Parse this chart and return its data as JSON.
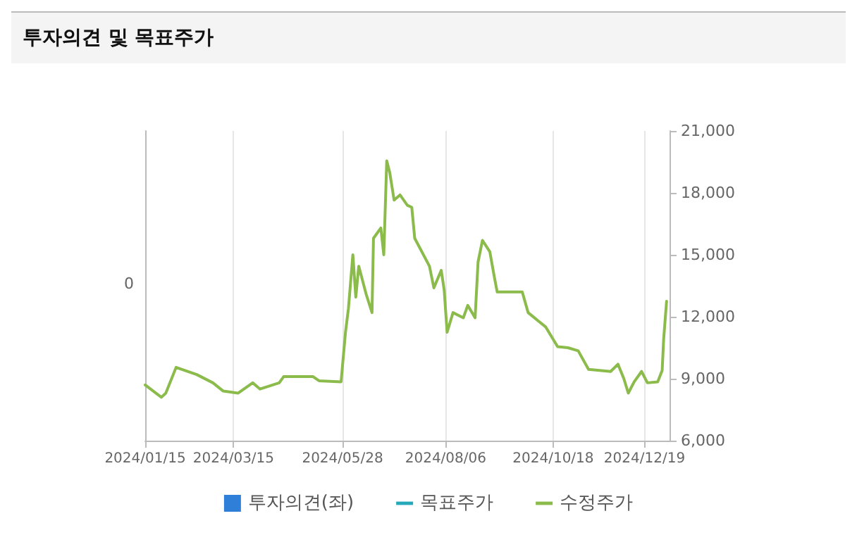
{
  "chart_data": {
    "type": "line",
    "title": "투자의견 및 목표주가",
    "x": [
      "2024-01-15",
      "2024-01-26",
      "2024-01-29",
      "2024-02-05",
      "2024-02-19",
      "2024-03-01",
      "2024-03-08",
      "2024-03-18",
      "2024-03-28",
      "2024-04-02",
      "2024-04-15",
      "2024-04-18",
      "2024-05-08",
      "2024-05-12",
      "2024-05-27",
      "2024-05-30",
      "2024-06-01",
      "2024-06-04",
      "2024-06-06",
      "2024-06-08",
      "2024-06-13",
      "2024-06-17",
      "2024-06-18",
      "2024-06-23",
      "2024-06-25",
      "2024-06-27",
      "2024-06-29",
      "2024-07-02",
      "2024-07-06",
      "2024-07-11",
      "2024-07-14",
      "2024-07-16",
      "2024-07-26",
      "2024-07-29",
      "2024-08-03",
      "2024-08-05",
      "2024-08-07",
      "2024-08-11",
      "2024-08-18",
      "2024-08-21",
      "2024-08-26",
      "2024-08-28",
      "2024-08-31",
      "2024-09-05",
      "2024-09-08",
      "2024-09-10",
      "2024-09-27",
      "2024-10-01",
      "2024-10-13",
      "2024-10-21",
      "2024-10-28",
      "2024-11-04",
      "2024-11-11",
      "2024-11-26",
      "2024-12-01",
      "2024-12-05",
      "2024-12-08",
      "2024-12-12",
      "2024-12-17",
      "2024-12-21",
      "2024-12-28",
      "2024-12-31",
      "2025-01-01",
      "2025-01-03"
    ],
    "series": [
      {
        "name": "투자의견(좌)",
        "color": "#2f7ed8",
        "axis": "y",
        "values": [
          null,
          null,
          null,
          null,
          null,
          null,
          null,
          null,
          null,
          null,
          null,
          null,
          null,
          null,
          null,
          null,
          null,
          null,
          null,
          null,
          null,
          null,
          null,
          null,
          null,
          null,
          null,
          null,
          null,
          null,
          null,
          null,
          null,
          null,
          null,
          null,
          null,
          null,
          null,
          null,
          null,
          null,
          null,
          null,
          null,
          null,
          null,
          null,
          null,
          null,
          null,
          null,
          null,
          null,
          null,
          null,
          null,
          null,
          null,
          null,
          null,
          null,
          null,
          null
        ]
      },
      {
        "name": "목표주가",
        "color": "#26a9b8",
        "axis": "y2",
        "values": [
          null,
          null,
          null,
          null,
          null,
          null,
          null,
          null,
          null,
          null,
          null,
          null,
          null,
          null,
          null,
          null,
          null,
          null,
          null,
          null,
          null,
          null,
          null,
          null,
          null,
          null,
          null,
          null,
          null,
          null,
          null,
          null,
          null,
          null,
          null,
          null,
          null,
          null,
          null,
          null,
          null,
          null,
          null,
          null,
          null,
          null,
          null,
          null,
          null,
          null,
          null,
          null,
          null,
          null,
          null,
          null,
          null,
          null,
          null,
          null,
          null,
          null,
          null,
          null
        ]
      },
      {
        "name": "수정주가",
        "color": "#8bbb4b",
        "axis": "y2",
        "values": [
          8700,
          8100,
          8300,
          9550,
          9200,
          8800,
          8400,
          8300,
          8800,
          8500,
          8800,
          9100,
          9100,
          8900,
          8850,
          11250,
          12400,
          15000,
          12950,
          14450,
          13100,
          12200,
          15800,
          16300,
          15000,
          19550,
          19000,
          17650,
          17900,
          17400,
          17300,
          15800,
          14450,
          13400,
          14250,
          13300,
          11250,
          12200,
          11950,
          12550,
          11950,
          14650,
          15700,
          15150,
          13950,
          13200,
          13200,
          12200,
          11500,
          10550,
          10500,
          10350,
          9450,
          9350,
          9700,
          9000,
          8300,
          8850,
          9350,
          8800,
          8850,
          9400,
          10900,
          12750
        ]
      }
    ],
    "xlim": [
      "2024-01-15",
      "2025-01-05"
    ],
    "xticks": [
      {
        "value": "2024-01-15",
        "label": "2024/01/15"
      },
      {
        "value": "2024-03-15",
        "label": "2024/03/15"
      },
      {
        "value": "2024-05-28",
        "label": "2024/05/28"
      },
      {
        "value": "2024-08-06",
        "label": "2024/08/06"
      },
      {
        "value": "2024-10-18",
        "label": "2024/10/18"
      },
      {
        "value": "2024-12-19",
        "label": "2024/12/19"
      }
    ],
    "annotations": [
      "0"
    ],
    "y2lim": [
      6000,
      21000
    ],
    "y2ticks": [
      {
        "value": 6000,
        "label": "6,000"
      },
      {
        "value": 9000,
        "label": "9,000"
      },
      {
        "value": 12000,
        "label": "12,000"
      },
      {
        "value": 15000,
        "label": "15,000"
      },
      {
        "value": 18000,
        "label": "18,000"
      },
      {
        "value": 21000,
        "label": "21,000"
      }
    ],
    "grid": true,
    "legend": "bottom",
    "marker": "none",
    "line_style": "solid"
  }
}
